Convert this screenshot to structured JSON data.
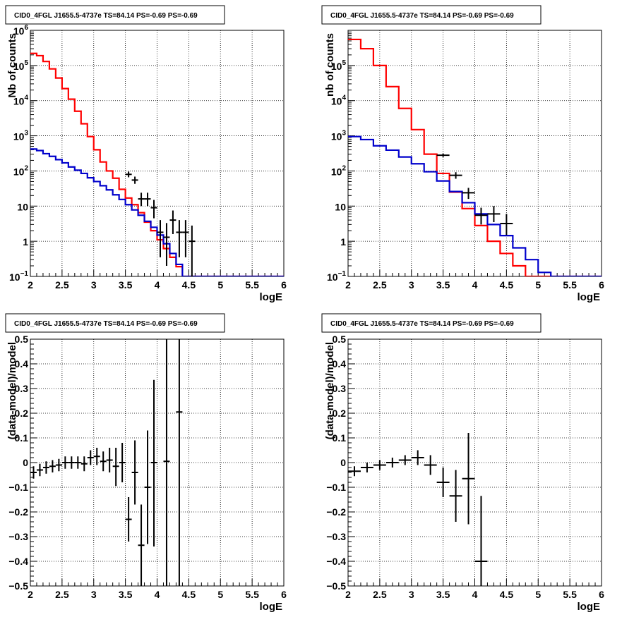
{
  "colors": {
    "data": "#000000",
    "model": "#ff0000",
    "background": "#0000cc",
    "grid": "#000000"
  },
  "chart_data": [
    {
      "type": "line",
      "title": "CID0_4FGL J1655.5-4737e TS=84.14 PS=-0.69 PS=-0.69",
      "xlabel": "logE",
      "ylabel": "Nb of counts",
      "xlim": [
        2,
        6
      ],
      "ylim": [
        0.1,
        1000000
      ],
      "yscale": "log",
      "grid": true,
      "x_ticks": [
        "2",
        "2.5",
        "3",
        "3.5",
        "4",
        "4.5",
        "5",
        "5.5",
        "6"
      ],
      "y_ticks": [
        {
          "base": "10",
          "exp": "−1"
        },
        {
          "base": "1",
          "exp": ""
        },
        {
          "base": "10",
          "exp": ""
        },
        {
          "base": "10",
          "exp": "2"
        },
        {
          "base": "10",
          "exp": "3"
        },
        {
          "base": "10",
          "exp": "4"
        },
        {
          "base": "10",
          "exp": "5"
        },
        {
          "base": "10",
          "exp": "6"
        }
      ],
      "step_edges": [
        2.0,
        2.1,
        2.2,
        2.3,
        2.4,
        2.5,
        2.6,
        2.7,
        2.8,
        2.9,
        3.0,
        3.1,
        3.2,
        3.3,
        3.4,
        3.5,
        3.6,
        3.7,
        3.8,
        3.9,
        4.0,
        4.1,
        4.2,
        4.3,
        4.4,
        4.5,
        4.6,
        4.7,
        4.8,
        4.9,
        5.0,
        5.1,
        5.2,
        5.3,
        5.4,
        5.5,
        5.6,
        5.7,
        5.8,
        5.9,
        6.0
      ],
      "series": [
        {
          "role": "model",
          "values": [
            220000,
            190000,
            130000,
            80000,
            44000,
            22000,
            11000,
            5000,
            2200,
            950,
            400,
            180,
            100,
            62,
            30,
            17,
            11,
            6.5,
            3.5,
            2.0,
            1.1,
            0.62,
            0.35,
            0.19,
            0.1,
            0.1,
            0.1,
            0.1,
            0.1,
            0.1,
            0.1,
            0.1,
            0.1,
            0.1,
            0.1,
            0.1,
            0.1,
            0.1,
            0.1,
            0.1
          ]
        },
        {
          "role": "background",
          "values": [
            420,
            380,
            310,
            260,
            210,
            170,
            130,
            105,
            85,
            64,
            50,
            38,
            29,
            21,
            15.5,
            11,
            7.8,
            5.5,
            3.7,
            2.5,
            1.5,
            0.85,
            0.45,
            0.22,
            0.1,
            0.1,
            0.1,
            0.1,
            0.1,
            0.1,
            0.1,
            0.1,
            0.1,
            0.1,
            0.1,
            0.1,
            0.1,
            0.1,
            0.1,
            0.1
          ]
        },
        {
          "role": "data",
          "points": [
            {
              "x": 3.55,
              "y": 80,
              "xerr": 0.05,
              "lo": 66,
              "hi": 96
            },
            {
              "x": 3.65,
              "y": 55,
              "xerr": 0.05,
              "lo": 43,
              "hi": 69
            },
            {
              "x": 3.75,
              "y": 16,
              "xerr": 0.05,
              "lo": 10,
              "hi": 24
            },
            {
              "x": 3.85,
              "y": 16,
              "xerr": 0.05,
              "lo": 10,
              "hi": 24
            },
            {
              "x": 3.95,
              "y": 9,
              "xerr": 0.05,
              "lo": 4.5,
              "hi": 15
            },
            {
              "x": 4.05,
              "y": 1.8,
              "xerr": 0.05,
              "lo": 0.35,
              "hi": 4
            },
            {
              "x": 4.15,
              "y": 1.3,
              "xerr": 0.05,
              "lo": 0.2,
              "hi": 3.3
            },
            {
              "x": 4.25,
              "y": 4,
              "xerr": 0.05,
              "lo": 1.6,
              "hi": 7.5
            },
            {
              "x": 4.35,
              "y": 1.8,
              "xerr": 0.05,
              "lo": 0.35,
              "hi": 4
            },
            {
              "x": 4.45,
              "y": 1.8,
              "xerr": 0.05,
              "lo": 0.35,
              "hi": 4
            },
            {
              "x": 4.55,
              "y": 1.0,
              "xerr": 0.05,
              "lo": 0.1,
              "hi": 2.8
            }
          ]
        }
      ]
    },
    {
      "type": "line",
      "title": "CID0_4FGL J1655.5-4737e TS=84.14 PS=-0.69 PS=-0.69",
      "xlabel": "logE",
      "ylabel": "nb of counts",
      "xlim": [
        2,
        6
      ],
      "ylim": [
        0.1,
        1000000
      ],
      "yscale": "log",
      "grid": true,
      "x_ticks": [
        "2",
        "2.5",
        "3",
        "3.5",
        "4",
        "4.5",
        "5",
        "5.5",
        "6"
      ],
      "y_ticks": [
        {
          "base": "10",
          "exp": "−1"
        },
        {
          "base": "1",
          "exp": ""
        },
        {
          "base": "10",
          "exp": ""
        },
        {
          "base": "10",
          "exp": "2"
        },
        {
          "base": "10",
          "exp": "3"
        },
        {
          "base": "10",
          "exp": "4"
        },
        {
          "base": "10",
          "exp": "5"
        }
      ],
      "step_edges": [
        2.0,
        2.2,
        2.4,
        2.6,
        2.8,
        3.0,
        3.2,
        3.4,
        3.6,
        3.8,
        4.0,
        4.2,
        4.4,
        4.6,
        4.8,
        5.0,
        5.2,
        5.4,
        5.6,
        5.8,
        6.0
      ],
      "series": [
        {
          "role": "model",
          "values": [
            550000,
            300000,
            100000,
            25000,
            6000,
            1500,
            300,
            85,
            25,
            8.5,
            2.8,
            1.0,
            0.45,
            0.2,
            0.1,
            0.1,
            0.1,
            0.1,
            0.1,
            0.1
          ]
        },
        {
          "role": "background",
          "values": [
            950,
            780,
            520,
            390,
            250,
            160,
            95,
            52,
            26,
            12.5,
            6,
            3,
            1.45,
            0.65,
            0.3,
            0.13,
            0.1,
            0.1,
            0.1,
            0.1
          ]
        },
        {
          "role": "data",
          "points": [
            {
              "x": 3.5,
              "y": 280,
              "xerr": 0.1,
              "lo": 250,
              "hi": 310
            },
            {
              "x": 3.7,
              "y": 75,
              "xerr": 0.1,
              "lo": 60,
              "hi": 92
            },
            {
              "x": 3.9,
              "y": 24,
              "xerr": 0.1,
              "lo": 16,
              "hi": 33
            },
            {
              "x": 4.1,
              "y": 5.5,
              "xerr": 0.1,
              "lo": 3,
              "hi": 9
            },
            {
              "x": 4.3,
              "y": 6,
              "xerr": 0.1,
              "lo": 3.5,
              "hi": 10
            },
            {
              "x": 4.5,
              "y": 3.2,
              "xerr": 0.1,
              "lo": 1.5,
              "hi": 6
            }
          ]
        }
      ]
    },
    {
      "type": "scatter",
      "title": "CID0_4FGL J1655.5-4737e TS=84.14 PS=-0.69 PS=-0.69",
      "xlabel": "logE",
      "ylabel": "(data-model)/model",
      "xlim": [
        2,
        6
      ],
      "ylim": [
        -0.5,
        0.5
      ],
      "grid": true,
      "x_ticks": [
        "2",
        "2.5",
        "3",
        "3.5",
        "4",
        "4.5",
        "5",
        "5.5",
        "6"
      ],
      "y_ticks": [
        "−0.5",
        "−0.4",
        "−0.3",
        "−0.2",
        "−0.1",
        "0",
        "0.1",
        "0.2",
        "0.3",
        "0.4",
        "0.5"
      ],
      "series": [
        {
          "role": "data",
          "points": [
            {
              "x": 2.05,
              "y": -0.04,
              "xerr": 0.05,
              "lo": -0.065,
              "hi": -0.015
            },
            {
              "x": 2.15,
              "y": -0.03,
              "xerr": 0.05,
              "lo": -0.055,
              "hi": -0.005
            },
            {
              "x": 2.25,
              "y": -0.02,
              "xerr": 0.05,
              "lo": -0.045,
              "hi": 0.005
            },
            {
              "x": 2.35,
              "y": -0.015,
              "xerr": 0.05,
              "lo": -0.04,
              "hi": 0.01
            },
            {
              "x": 2.45,
              "y": -0.01,
              "xerr": 0.05,
              "lo": -0.035,
              "hi": 0.015
            },
            {
              "x": 2.55,
              "y": 0.0,
              "xerr": 0.05,
              "lo": -0.025,
              "hi": 0.025
            },
            {
              "x": 2.65,
              "y": 0.0,
              "xerr": 0.05,
              "lo": -0.025,
              "hi": 0.025
            },
            {
              "x": 2.75,
              "y": 0.0,
              "xerr": 0.05,
              "lo": -0.025,
              "hi": 0.025
            },
            {
              "x": 2.85,
              "y": -0.005,
              "xerr": 0.05,
              "lo": -0.035,
              "hi": 0.025
            },
            {
              "x": 2.95,
              "y": 0.02,
              "xerr": 0.05,
              "lo": -0.01,
              "hi": 0.05
            },
            {
              "x": 3.05,
              "y": 0.025,
              "xerr": 0.05,
              "lo": -0.01,
              "hi": 0.06
            },
            {
              "x": 3.15,
              "y": 0.005,
              "xerr": 0.05,
              "lo": -0.035,
              "hi": 0.045
            },
            {
              "x": 3.25,
              "y": 0.01,
              "xerr": 0.05,
              "lo": -0.04,
              "hi": 0.06
            },
            {
              "x": 3.35,
              "y": -0.015,
              "xerr": 0.05,
              "lo": -0.095,
              "hi": 0.06
            },
            {
              "x": 3.45,
              "y": 0.0,
              "xerr": 0.05,
              "lo": -0.08,
              "hi": 0.08
            },
            {
              "x": 3.55,
              "y": -0.23,
              "xerr": 0.05,
              "lo": -0.32,
              "hi": -0.14
            },
            {
              "x": 3.65,
              "y": -0.04,
              "xerr": 0.05,
              "lo": -0.17,
              "hi": 0.09
            },
            {
              "x": 3.75,
              "y": -0.335,
              "xerr": 0.05,
              "lo": -0.5,
              "hi": -0.17
            },
            {
              "x": 3.85,
              "y": -0.1,
              "xerr": 0.05,
              "lo": -0.33,
              "hi": 0.13
            },
            {
              "x": 3.95,
              "y": 0.0,
              "xerr": 0.05,
              "lo": -0.34,
              "hi": 0.335
            },
            {
              "x": 4.15,
              "y": 0.005,
              "xerr": 0.05,
              "lo": -0.5,
              "hi": 0.5
            },
            {
              "x": 4.35,
              "y": 0.205,
              "xerr": 0.05,
              "lo": -0.5,
              "hi": 0.5
            }
          ]
        }
      ]
    },
    {
      "type": "scatter",
      "title": "CID0_4FGL J1655.5-4737e TS=84.14 PS=-0.69 PS=-0.69",
      "xlabel": "logE",
      "ylabel": "(data-model)/model",
      "xlim": [
        2,
        6
      ],
      "ylim": [
        -0.5,
        0.5
      ],
      "grid": true,
      "x_ticks": [
        "2",
        "2.5",
        "3",
        "3.5",
        "4",
        "4.5",
        "5",
        "5.5",
        "6"
      ],
      "y_ticks": [
        "−0.5",
        "−0.4",
        "−0.3",
        "−0.2",
        "−0.1",
        "0",
        "0.1",
        "0.2",
        "0.3",
        "0.4",
        "0.5"
      ],
      "series": [
        {
          "role": "data",
          "points": [
            {
              "x": 2.1,
              "y": -0.035,
              "xerr": 0.1,
              "lo": -0.055,
              "hi": -0.015
            },
            {
              "x": 2.3,
              "y": -0.02,
              "xerr": 0.1,
              "lo": -0.04,
              "hi": 0.0
            },
            {
              "x": 2.5,
              "y": -0.01,
              "xerr": 0.1,
              "lo": -0.03,
              "hi": 0.01
            },
            {
              "x": 2.7,
              "y": 0.0,
              "xerr": 0.1,
              "lo": -0.02,
              "hi": 0.02
            },
            {
              "x": 2.9,
              "y": 0.01,
              "xerr": 0.1,
              "lo": -0.01,
              "hi": 0.03
            },
            {
              "x": 3.1,
              "y": 0.02,
              "xerr": 0.1,
              "lo": -0.01,
              "hi": 0.05
            },
            {
              "x": 3.3,
              "y": -0.01,
              "xerr": 0.1,
              "lo": -0.05,
              "hi": 0.03
            },
            {
              "x": 3.5,
              "y": -0.08,
              "xerr": 0.1,
              "lo": -0.14,
              "hi": -0.02
            },
            {
              "x": 3.7,
              "y": -0.135,
              "xerr": 0.1,
              "lo": -0.24,
              "hi": -0.03
            },
            {
              "x": 3.9,
              "y": -0.065,
              "xerr": 0.1,
              "lo": -0.25,
              "hi": 0.12
            },
            {
              "x": 4.1,
              "y": -0.4,
              "xerr": 0.1,
              "lo": -0.5,
              "hi": -0.135
            }
          ]
        }
      ]
    }
  ]
}
